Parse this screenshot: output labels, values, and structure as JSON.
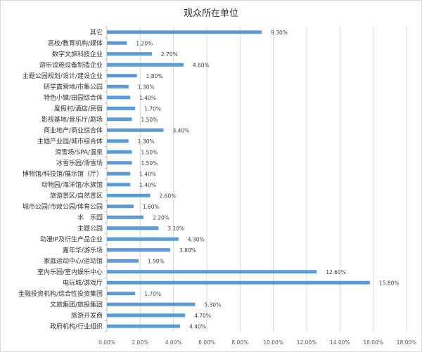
{
  "chart_data": {
    "type": "bar",
    "orientation": "horizontal",
    "title": "观众所在单位",
    "xlabel": "",
    "ylabel": "",
    "xlim": [
      0,
      18
    ],
    "x_ticks": [
      "0.00%",
      "2.00%",
      "4.00%",
      "6.00%",
      "8.00%",
      "10.00%",
      "12.00%",
      "14.00%",
      "16.00%",
      "18.00%"
    ],
    "grid": true,
    "legend": "none",
    "bar_color": "#5b9bd5",
    "categories": [
      "其它",
      "高校/教育机构/媒体",
      "数字文旅科技企业",
      "游乐设施设备制造企业",
      "主题公园规划/设计/建设企业",
      "研学露营地/市集公园",
      "特色小镇/田园综合体",
      "度假村/酒店/民宿",
      "影视基地/音乐厅/剧场",
      "商业地产/商业综合体",
      "主题产业园/城市综合体",
      "滑雪场/SPA/温泉",
      "冰雪乐园/滑雪场",
      "博物馆/科技馆/展示馆（厅）",
      "动物园/海洋馆/水族馆",
      "旅游景区/自然景区",
      "城市公园/市政公园/体育公园",
      "水　乐园",
      "主题公园",
      "动漫IP及衍生产品企业",
      "嘉年华/游乐场",
      "家庭运动中心/运动馆",
      "室内乐园/室内娱乐中心",
      "电玩城/游戏厅",
      "金融投资机构/综合性投资集团",
      "文旅集团/旅投集团",
      "旅游开发商",
      "政府机构/行业组织"
    ],
    "values": [
      9.3,
      1.2,
      2.7,
      4.6,
      1.8,
      1.3,
      1.4,
      1.7,
      1.5,
      3.4,
      1.3,
      1.5,
      1.5,
      1.4,
      1.4,
      2.6,
      1.6,
      2.2,
      3.1,
      4.3,
      3.8,
      1.9,
      12.6,
      15.8,
      1.7,
      5.3,
      4.7,
      4.4
    ],
    "value_labels": [
      "9.30%",
      "1.20%",
      "2.70%",
      "4.60%",
      "1.80%",
      "1.30%",
      "1.40%",
      "1.70%",
      "1.50%",
      "3.40%",
      "1.30%",
      "1.50%",
      "1.50%",
      "1.40%",
      "1.40%",
      "2.60%",
      "1.60%",
      "2.20%",
      "3.10%",
      "4.30%",
      "3.80%",
      "1.90%",
      "12.60%",
      "15.80%",
      "1.70%",
      "5.30%",
      "4.70%",
      "4.40%"
    ]
  }
}
